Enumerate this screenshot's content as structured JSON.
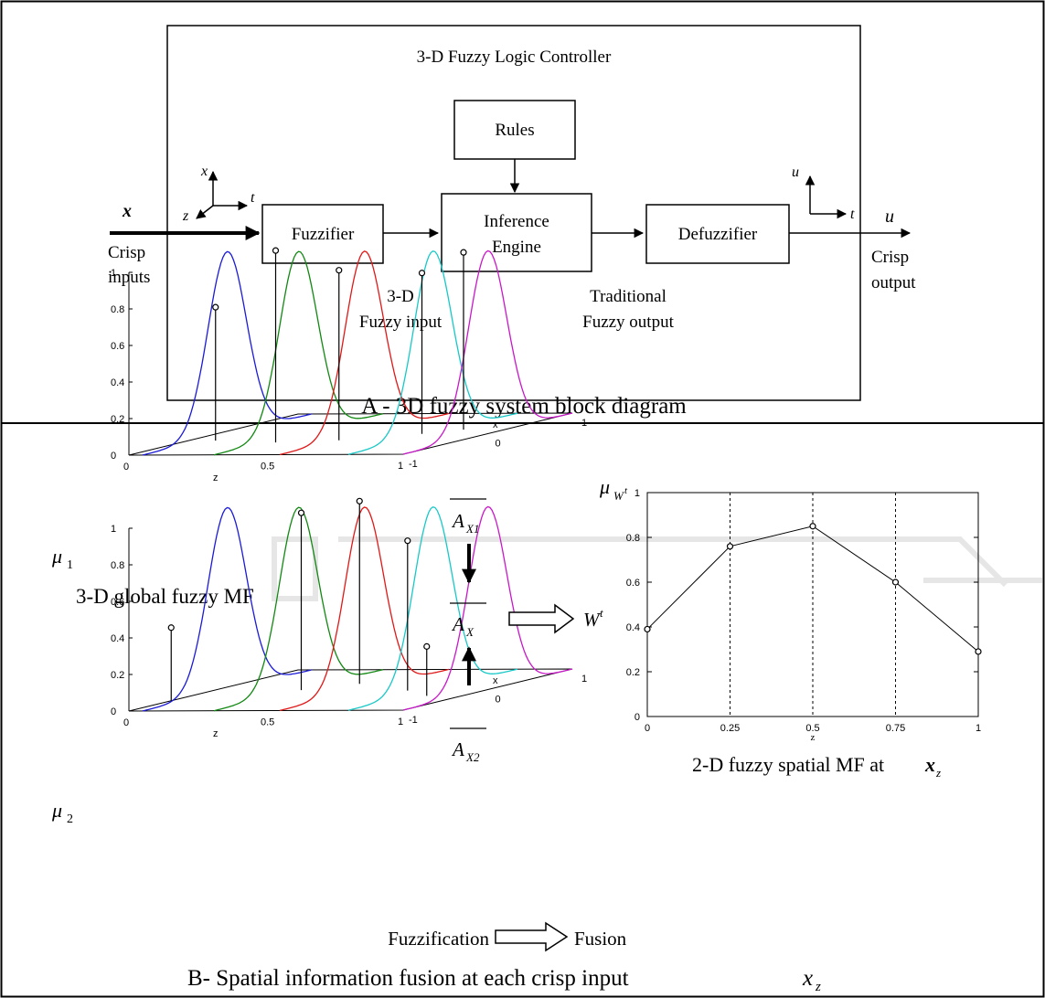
{
  "panel_a": {
    "controller_title": "3-D Fuzzy Logic Controller",
    "rules": "Rules",
    "fuzzifier": "Fuzzifier",
    "inference_line1": "Inference",
    "inference_line2": "Engine",
    "defuzzifier": "Defuzzifier",
    "input_var": "x",
    "input_label_line1": "Crisp",
    "input_label_line2": "inputs",
    "output_var": "u",
    "output_label_line1": "Crisp",
    "output_label_line2": "output",
    "axes_in": {
      "x": "x",
      "z": "z",
      "t": "t"
    },
    "axes_out": {
      "u": "u",
      "t": "t"
    },
    "fuzzy_input_line1": "3-D",
    "fuzzy_input_line2": "Fuzzy input",
    "fuzzy_output_line1": "Traditional",
    "fuzzy_output_line2": "Fuzzy output",
    "caption": "A - 3D fuzzy system block diagram"
  },
  "panel_b": {
    "top_plot": {
      "ylabel": "μ",
      "ylabel_sub": "1",
      "yticks": [
        "0",
        "0.2",
        "0.4",
        "0.6",
        "0.8",
        "1"
      ],
      "zticks": [
        "0",
        "0.5",
        "1"
      ],
      "zlabel": "z",
      "xticks": [
        "-1",
        "0",
        "1"
      ],
      "xlabel": "x",
      "caption": "3-D global fuzzy MF"
    },
    "bottom_plot": {
      "ylabel": "μ",
      "ylabel_sub": "2",
      "yticks": [
        "0",
        "0.2",
        "0.4",
        "0.6",
        "0.8",
        "1"
      ],
      "zticks": [
        "0",
        "0.5",
        "1"
      ],
      "zlabel": "z",
      "xticks": [
        "-1",
        "0",
        "1"
      ],
      "xlabel": "x"
    },
    "a_x1": "A",
    "a_x1_sub": "X1",
    "a_x": "A",
    "a_x_sub": "X",
    "a_x2": "A",
    "a_x2_sub": "X2",
    "w_label": "W",
    "w_sup": "t",
    "fuzzification": "Fuzzification",
    "fusion": "Fusion",
    "caption_prefix": "B- Spatial information fusion at each crisp input",
    "caption_var": "x",
    "caption_sub": "z"
  },
  "chart_data": {
    "type": "line",
    "ylabel": "μ",
    "ylabel_sub": "W",
    "ylabel_sup": "t",
    "xlabel": "z",
    "x": [
      0,
      0.25,
      0.5,
      0.75,
      1
    ],
    "values": [
      0.39,
      0.76,
      0.85,
      0.6,
      0.29
    ],
    "xlim": [
      0,
      1
    ],
    "ylim": [
      0,
      1
    ],
    "xticks": [
      "0",
      "0.25",
      "0.5",
      "0.75",
      "1"
    ],
    "yticks": [
      "0",
      "0.2",
      "0.4",
      "0.6",
      "0.8",
      "1"
    ],
    "grid": "vertical dashed at data points",
    "caption": "2-D fuzzy spatial MF at",
    "caption_var": "x",
    "caption_sub": "z"
  },
  "colors": {
    "mf1": "#1a1ad8",
    "mf2": "#118811",
    "mf3": "#e01818",
    "mf4": "#18c8c8",
    "mf5": "#c818c8",
    "border": "#000000",
    "watermark": "#e6e6e6"
  }
}
